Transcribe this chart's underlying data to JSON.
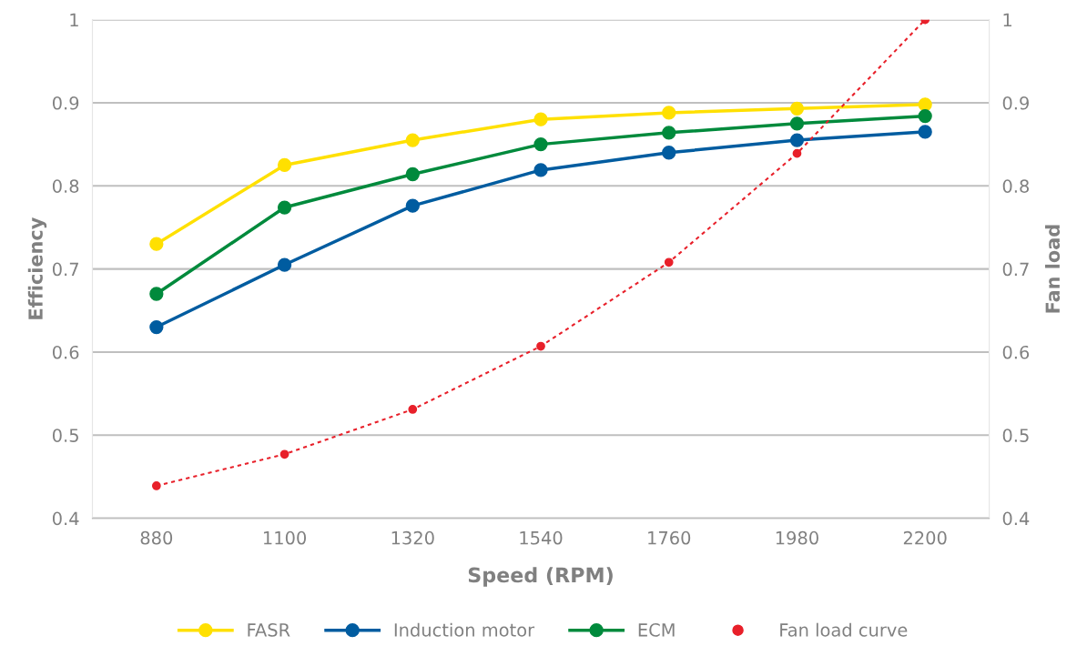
{
  "chart_data": {
    "type": "line",
    "xlabel": "Speed (RPM)",
    "ylabel": "Efficiency",
    "y2label": "Fan load",
    "categories": [
      "880",
      "1100",
      "1320",
      "1540",
      "1760",
      "1980",
      "2200"
    ],
    "series": [
      {
        "name": "FASR",
        "color": "#ffe000",
        "values": [
          0.73,
          0.825,
          0.855,
          0.88,
          0.888,
          0.893,
          0.898
        ],
        "marker": "circle",
        "line_style": "solid"
      },
      {
        "name": "Induction motor",
        "color": "#005ca0",
        "values": [
          0.63,
          0.705,
          0.776,
          0.819,
          0.84,
          0.855,
          0.865
        ],
        "marker": "circle",
        "line_style": "solid"
      },
      {
        "name": "ECM",
        "color": "#008a3c",
        "values": [
          0.67,
          0.774,
          0.814,
          0.85,
          0.864,
          0.875,
          0.884
        ],
        "marker": "circle",
        "line_style": "solid"
      },
      {
        "name": "Fan load curve",
        "color": "#e8202a",
        "values": [
          0.439,
          0.477,
          0.531,
          0.607,
          0.708,
          0.839,
          1.0
        ],
        "marker": "circle",
        "line_style": "dotted",
        "axis": "y2"
      }
    ],
    "ylim": [
      0.4,
      1
    ],
    "yticks": [
      0.4,
      0.5,
      0.6,
      0.7,
      0.8,
      0.9,
      1
    ],
    "y2lim": [
      0.4,
      1
    ],
    "y2ticks": [
      0.4,
      0.5,
      0.6,
      0.7,
      0.8,
      0.9,
      1
    ],
    "grid": "y",
    "legend": "bottom"
  }
}
